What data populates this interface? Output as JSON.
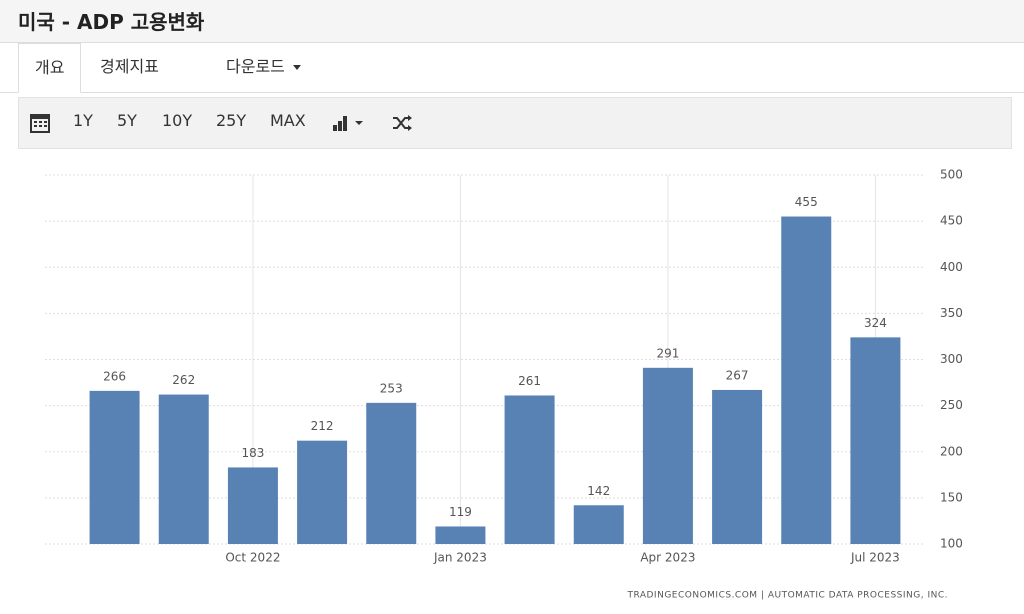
{
  "header": {
    "title": "미국 - ADP 고용변화"
  },
  "tabs": [
    "개요",
    "경제지표",
    "다운로드"
  ],
  "toolbar": [
    "1Y",
    "5Y",
    "10Y",
    "25Y",
    "MAX"
  ],
  "chart_data": {
    "type": "bar",
    "categories": [
      null,
      null,
      "Oct 2022",
      null,
      null,
      "Jan 2023",
      null,
      null,
      "Apr 2023",
      null,
      null,
      "Jul 2023"
    ],
    "values": [
      266,
      262,
      183,
      212,
      253,
      119,
      261,
      142,
      291,
      267,
      455,
      324
    ],
    "color": "#5882b3",
    "ylim": [
      100,
      500
    ],
    "yticks": [
      100,
      150,
      200,
      250,
      300,
      350,
      400,
      450,
      500
    ],
    "grid": true,
    "source": "TRADINGECONOMICS.COM | AUTOMATIC DATA PROCESSING, INC."
  }
}
